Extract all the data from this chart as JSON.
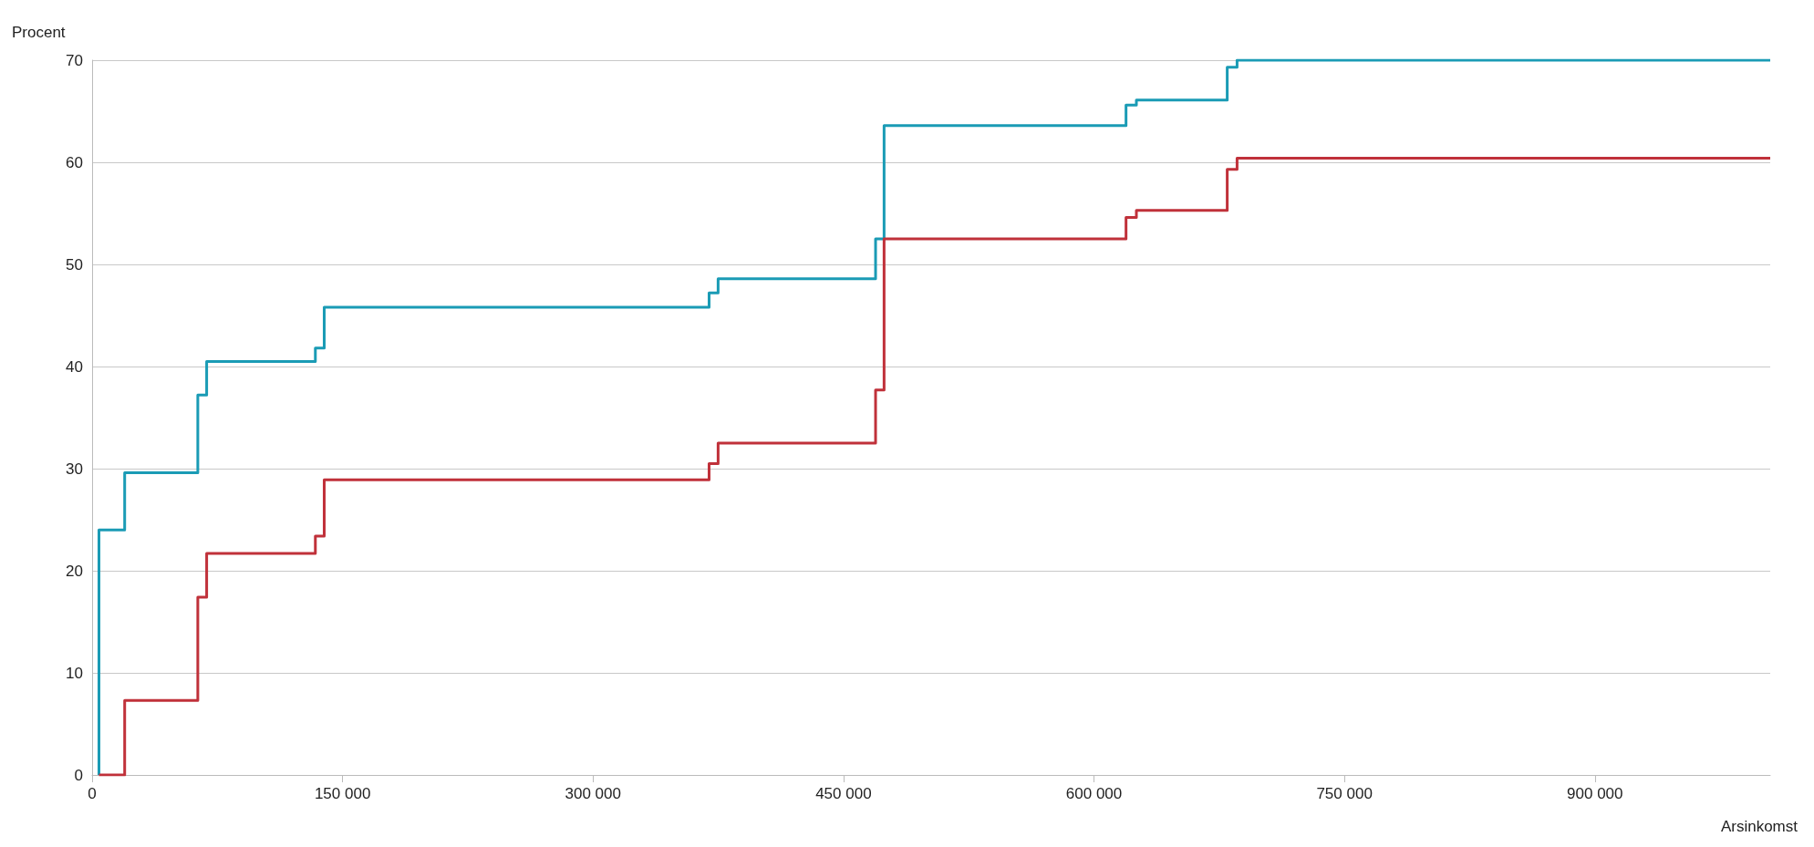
{
  "chart_data": {
    "type": "step",
    "ylabel": "Procent",
    "xlabel": "Arsinkomst",
    "xlim": [
      0,
      1005000
    ],
    "xticks": [
      0,
      {
        "value": 150000,
        "label": "150 000"
      },
      {
        "value": 300000,
        "label": "300 000"
      },
      {
        "value": 450000,
        "label": "450 000"
      },
      {
        "value": 600000,
        "label": "600 000"
      },
      {
        "value": 750000,
        "label": "750 000"
      },
      {
        "value": 900000,
        "label": "900 000"
      }
    ],
    "ylim": [
      0,
      70
    ],
    "yticks": [
      0,
      10,
      20,
      30,
      40,
      50,
      60,
      70
    ],
    "grid": "y",
    "marker": "none",
    "line_style": "solid",
    "series": [
      {
        "color": "#1a9bb5",
        "x": [
          4100,
          4100,
          19500,
          63300,
          68600,
          133700,
          139000,
          369500,
          374900,
          469200,
          474300,
          619200,
          625400,
          679800,
          685700,
          1005000
        ],
        "values": [
          0,
          24,
          29.6,
          37.2,
          40.5,
          41.8,
          45.8,
          47.2,
          48.6,
          52.5,
          63.6,
          65.6,
          66.1,
          69.3,
          70,
          70
        ]
      },
      {
        "color": "#c0313a",
        "x": [
          4100,
          19500,
          63300,
          68600,
          133700,
          139000,
          369500,
          374900,
          469200,
          474300,
          619200,
          625400,
          679800,
          685700,
          1005000
        ],
        "values": [
          0,
          7.3,
          17.4,
          21.7,
          23.4,
          28.9,
          30.5,
          32.5,
          37.7,
          52.5,
          54.6,
          55.3,
          59.3,
          60.4,
          60.4
        ]
      }
    ]
  }
}
